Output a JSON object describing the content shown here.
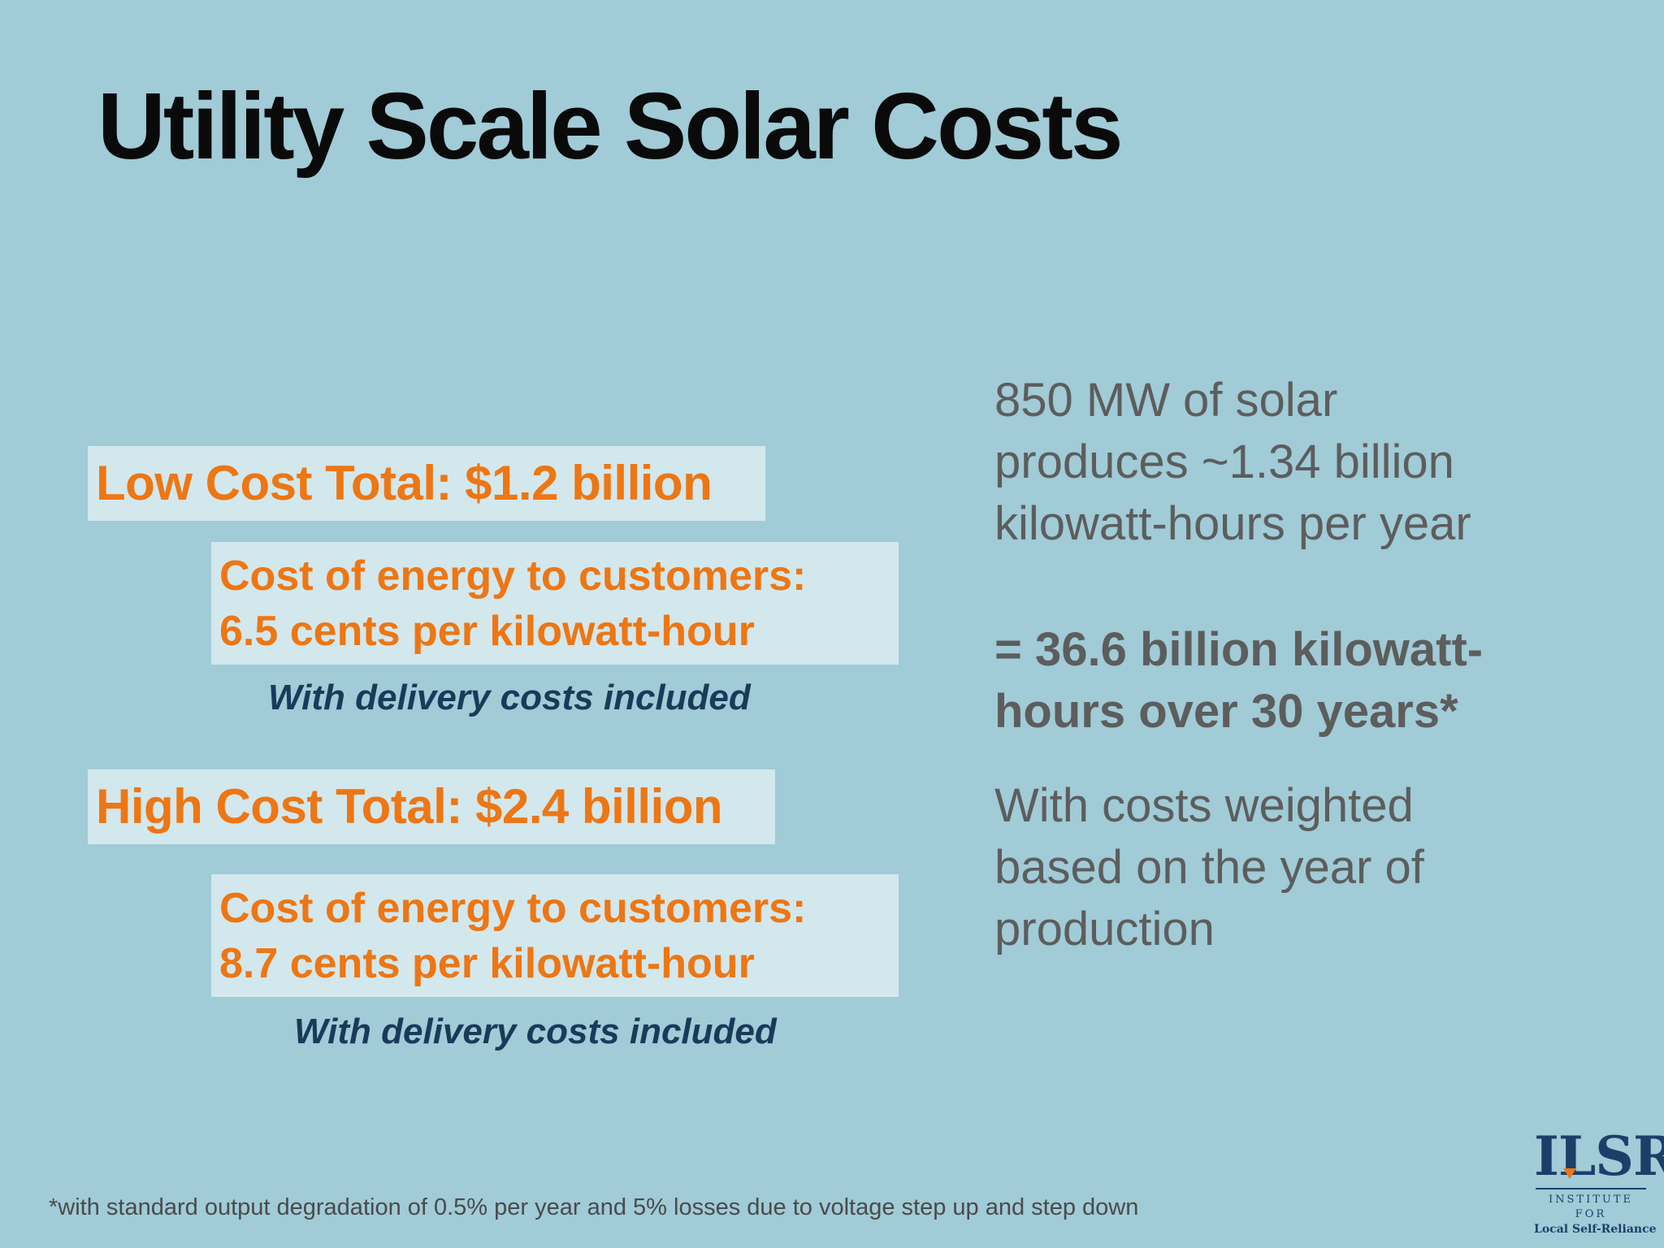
{
  "slide": {
    "title": "Utility Scale Solar Costs",
    "background_color": "#a0cbd7",
    "accent_color": "#ee7613"
  },
  "low": {
    "total": "Low Cost Total: $1.2 billion",
    "energy_line1": "Cost of energy to customers:",
    "energy_line2": "6.5 cents per kilowatt-hour",
    "delivery": "With delivery costs included"
  },
  "high": {
    "total": "High Cost Total: $2.4 billion",
    "energy_line1": "Cost of energy to customers:",
    "energy_line2": "8.7 cents per kilowatt-hour",
    "delivery": "With delivery costs included"
  },
  "right": {
    "production_lines": [
      "850 MW of solar",
      "produces ~1.34 billion",
      "kilowatt-hours per year"
    ],
    "total_lines": [
      "= 36.6 billion kilowatt-",
      "hours over 30 years*"
    ],
    "weighted_lines": [
      "With costs weighted",
      "based on the year of",
      "production"
    ]
  },
  "footnote": "*with standard output degradation of 0.5% per year and 5% losses due to voltage step up and step down",
  "logo": {
    "mark": "ILSR",
    "line1": "INSTITUTE FOR",
    "line2": "Local Self-Reliance"
  }
}
